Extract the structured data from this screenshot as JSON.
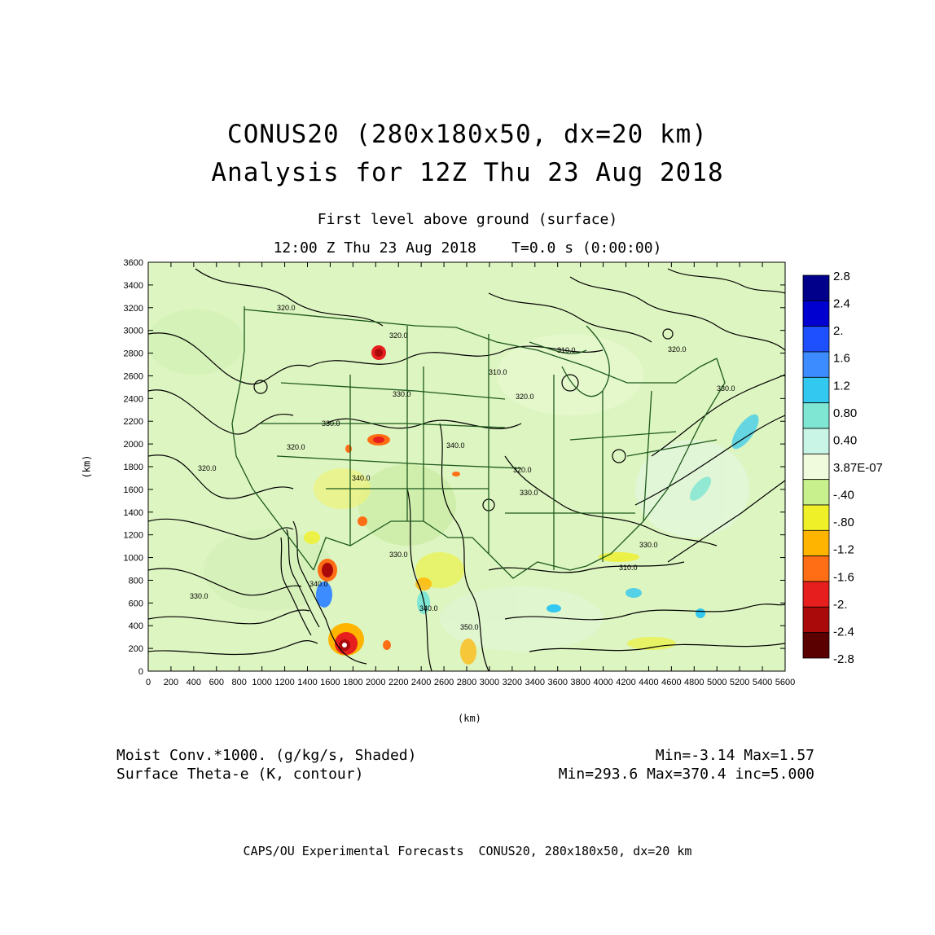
{
  "header": {
    "title_line1": "CONUS20 (280x180x50, dx=20 km)",
    "title_line2": "Analysis for 12Z Thu 23 Aug 2018",
    "subtitle_line1": "First level above ground (surface)",
    "subtitle_line2": "12:00 Z Thu 23 Aug 2018    T=0.0 s (0:00:00)"
  },
  "axes": {
    "x_unit": "(km)",
    "y_unit": "(km)",
    "x_ticks": [
      "0",
      "200",
      "400",
      "600",
      "800",
      "1000",
      "1200",
      "1400",
      "1600",
      "1800",
      "2000",
      "2200",
      "2400",
      "2600",
      "2800",
      "3000",
      "3200",
      "3400",
      "3600",
      "3800",
      "4000",
      "4200",
      "4400",
      "4600",
      "4800",
      "5000",
      "5200",
      "5400",
      "5600"
    ],
    "y_ticks": [
      "0",
      "200",
      "400",
      "600",
      "800",
      "1000",
      "1200",
      "1400",
      "1600",
      "1800",
      "2000",
      "2200",
      "2400",
      "2600",
      "2800",
      "3000",
      "3200",
      "3400",
      "3600"
    ],
    "x_range": [
      0,
      5600
    ],
    "y_range": [
      0,
      3600
    ]
  },
  "colorbar": {
    "labels": [
      "2.8",
      "2.4",
      "2.",
      "1.6",
      "1.2",
      "0.80",
      "0.40",
      "3.87E-07",
      "-.40",
      "-.80",
      "-1.2",
      "-1.6",
      "-2.",
      "-2.4",
      "-2.8"
    ],
    "colors": [
      "#00008b",
      "#0000d0",
      "#1e50ff",
      "#3c8cff",
      "#32c8f0",
      "#7ee6d2",
      "#c8f5e6",
      "#f0fadc",
      "#c8f08c",
      "#f0f028",
      "#ffb400",
      "#ff6e14",
      "#e61e1e",
      "#aa0a0a",
      "#5a0000"
    ]
  },
  "contour_labels": [
    "320.0",
    "330.0",
    "320.0",
    "320.0",
    "310.0",
    "320.0",
    "320.0",
    "330.0",
    "340.0",
    "320.0",
    "330.0",
    "340.0",
    "330.0",
    "340.0",
    "330.0",
    "320.0",
    "310.0",
    "310.0",
    "330.0",
    "340.0",
    "330.0",
    "350.0"
  ],
  "footer": {
    "field1_name": "Moist Conv.*1000. (g/kg/s, Shaded)",
    "field1_range": "Min=-3.14 Max=1.57",
    "field2_name": "Surface Theta-e (K, contour)",
    "field2_range": "Min=293.6 Max=370.4 inc=5.000",
    "credit": "CAPS/OU Experimental Forecasts  CONUS20, 280x180x50, dx=20 km"
  }
}
